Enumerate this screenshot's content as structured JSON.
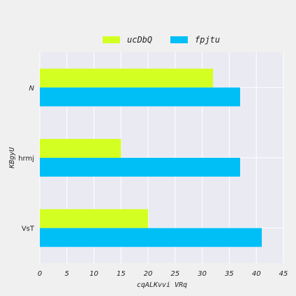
{
  "chart_data": {
    "type": "bar",
    "orientation": "horizontal",
    "categories": [
      "N",
      "hrmj",
      "VsT"
    ],
    "series": [
      {
        "name": "ucDbQ",
        "values": [
          32,
          15,
          20
        ],
        "color": "#d4ff22"
      },
      {
        "name": "fpjtu",
        "values": [
          37,
          37,
          41
        ],
        "color": "#00bff7"
      }
    ],
    "xlabel": "cqALKvvi VRq",
    "ylabel": "KBgyU",
    "xlim": [
      0,
      45
    ],
    "xticks": [
      0,
      5,
      10,
      15,
      20,
      25,
      30,
      35,
      40,
      45
    ],
    "grid": true,
    "legend_position": "top-center",
    "plot_background": "#eaeaf2",
    "grid_color": "#ffffff"
  }
}
